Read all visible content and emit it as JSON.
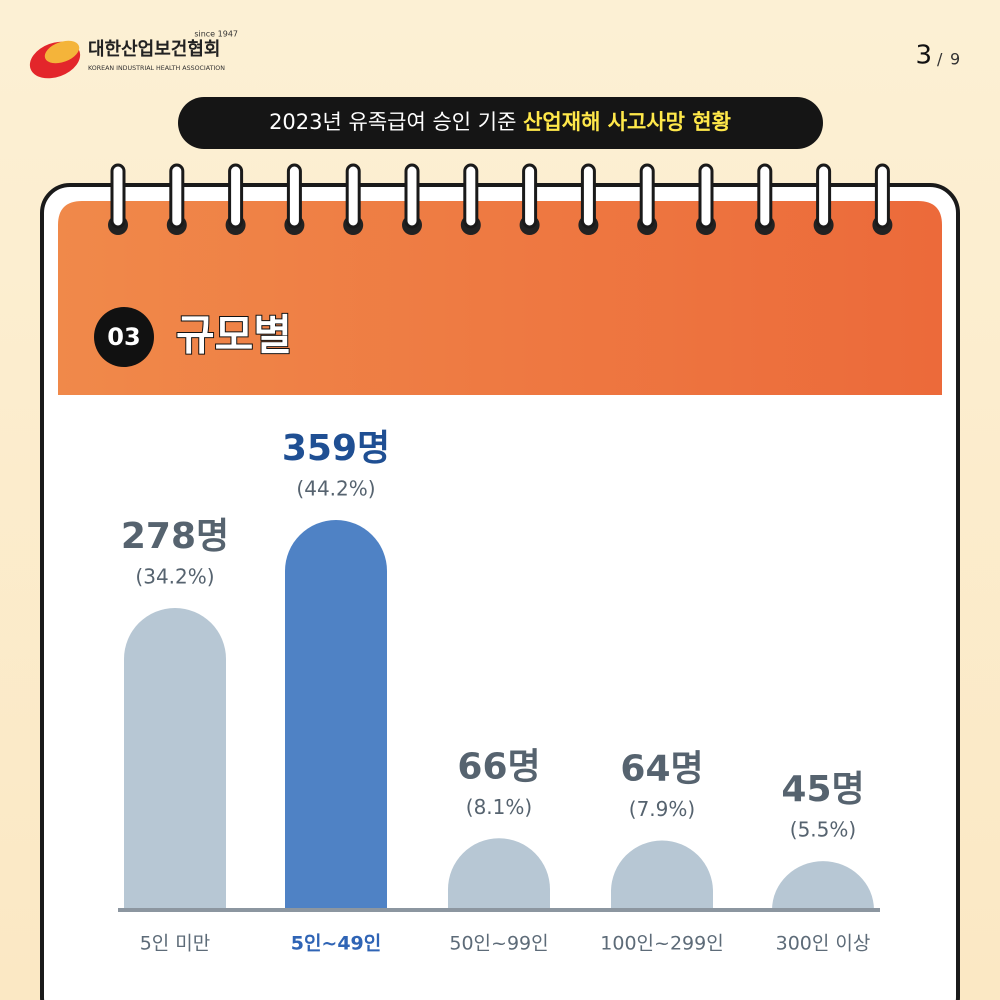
{
  "logo": {
    "name": "대한산업보건협회",
    "since": "since 1947",
    "english": "KOREAN INDUSTRIAL HEALTH ASSOCIATION"
  },
  "page": {
    "current": 3,
    "separator": "/",
    "total": 9
  },
  "header": {
    "title": "2023년 유족급여 승인 기준",
    "highlight": "산업재해 사고사망 현황"
  },
  "section": {
    "number": "03",
    "title": "규모별"
  },
  "chart_data": {
    "type": "bar",
    "categories": [
      "5인 미만",
      "5인~49인",
      "50인~99인",
      "100인~299인",
      "300인 이상"
    ],
    "values": [
      278,
      359,
      66,
      64,
      45
    ],
    "value_labels": [
      "278명",
      "359명",
      "66명",
      "64명",
      "45명"
    ],
    "shares": [
      34.2,
      44.2,
      8.1,
      7.9,
      5.5
    ],
    "share_labels": [
      "(34.2%)",
      "(44.2%)",
      "(8.1%)",
      "(7.9%)",
      "(5.5%)"
    ],
    "colors": [
      "#b7c7d4",
      "#4f82c5",
      "#b7c7d4",
      "#b7c7d4",
      "#b7c7d4"
    ],
    "label_colors": [
      "#5d6b78",
      "#2f64b5",
      "#5d6b78",
      "#5d6b78",
      "#5d6b78"
    ]
  }
}
